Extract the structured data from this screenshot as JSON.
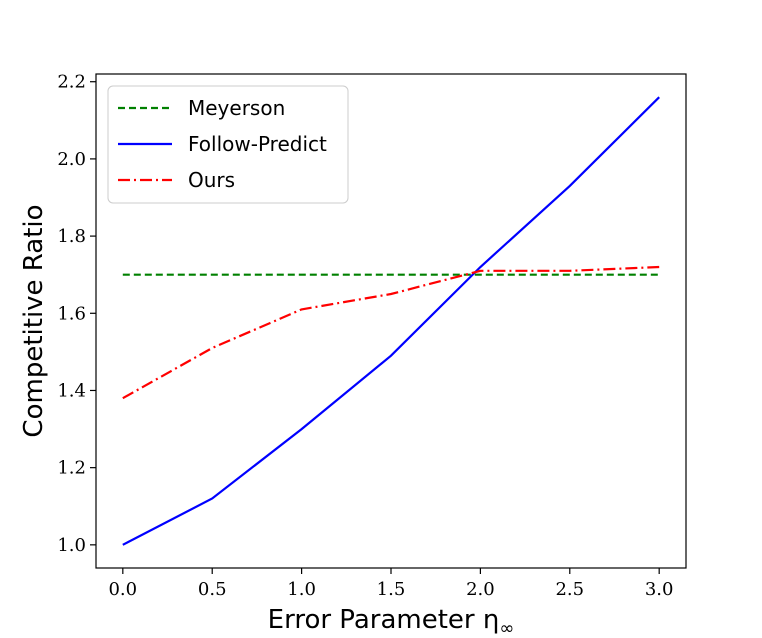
{
  "chart_data": {
    "type": "line",
    "xlabel": "Error Parameter η",
    "xlabel_subscript": "∞",
    "ylabel": "Competitive Ratio",
    "xlim": [
      -0.15,
      3.15
    ],
    "ylim": [
      0.94,
      2.22
    ],
    "xticks": [
      0.0,
      0.5,
      1.0,
      1.5,
      2.0,
      2.5,
      3.0
    ],
    "xtick_labels": [
      "0.0",
      "0.5",
      "1.0",
      "1.5",
      "2.0",
      "2.5",
      "3.0"
    ],
    "yticks": [
      1.0,
      1.2,
      1.4,
      1.6,
      1.8,
      2.0,
      2.2
    ],
    "ytick_labels": [
      "1.0",
      "1.2",
      "1.4",
      "1.6",
      "1.8",
      "2.0",
      "2.2"
    ],
    "grid": false,
    "legend_position": "upper-left",
    "x": [
      0.0,
      0.5,
      1.0,
      1.5,
      2.0,
      2.5,
      3.0
    ],
    "series": [
      {
        "name": "Meyerson",
        "values": [
          1.7,
          1.7,
          1.7,
          1.7,
          1.7,
          1.7,
          1.7
        ],
        "color": "#008000",
        "dash": "dashed"
      },
      {
        "name": "Follow-Predict",
        "values": [
          1.0,
          1.12,
          1.3,
          1.49,
          1.72,
          1.93,
          2.16
        ],
        "color": "#0000ff",
        "dash": "solid"
      },
      {
        "name": "Ours",
        "values": [
          1.38,
          1.51,
          1.61,
          1.65,
          1.71,
          1.71,
          1.72
        ],
        "color": "#ff0000",
        "dash": "dashdot"
      }
    ]
  }
}
